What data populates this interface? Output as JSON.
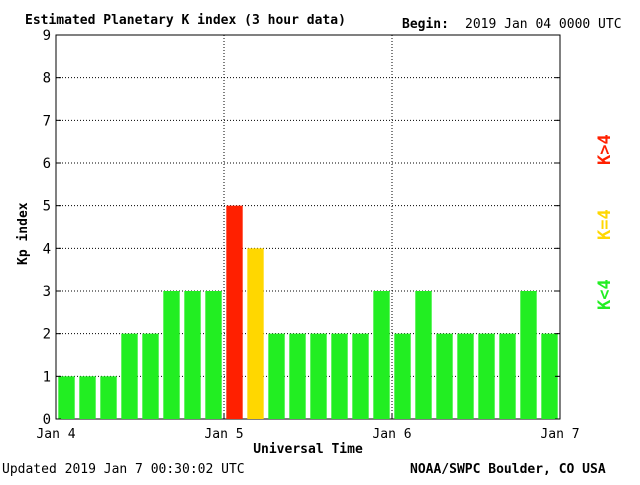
{
  "header": {
    "title": "Estimated Planetary K index (3 hour data)",
    "begin_label": "Begin:",
    "begin_value": "2019 Jan 04 0000 UTC"
  },
  "footer": {
    "updated": "Updated 2019 Jan  7 00:30:02 UTC",
    "source": "NOAA/SWPC Boulder, CO USA"
  },
  "legend": [
    {
      "label": "K>4",
      "color": "#ff2000"
    },
    {
      "label": "K=4",
      "color": "#ffd700"
    },
    {
      "label": "K<4",
      "color": "#22ee22"
    }
  ],
  "chart_data": {
    "type": "bar",
    "title": "Estimated Planetary K index (3 hour data)",
    "xlabel": "Universal Time",
    "ylabel": "Kp index",
    "ylim": [
      0,
      9
    ],
    "yticks": [
      0,
      1,
      2,
      3,
      4,
      5,
      6,
      7,
      8,
      9
    ],
    "xticks": [
      "Jan 4",
      "Jan 5",
      "Jan 6",
      "Jan 7"
    ],
    "bars_per_day": 8,
    "grid": true,
    "values": [
      1,
      1,
      1,
      2,
      2,
      3,
      3,
      3,
      5,
      4,
      2,
      2,
      2,
      2,
      2,
      3,
      2,
      3,
      2,
      2,
      2,
      2,
      3,
      2
    ],
    "colors": {
      "low": "#22ee22",
      "equal": "#ffd700",
      "high": "#ff2000"
    }
  }
}
